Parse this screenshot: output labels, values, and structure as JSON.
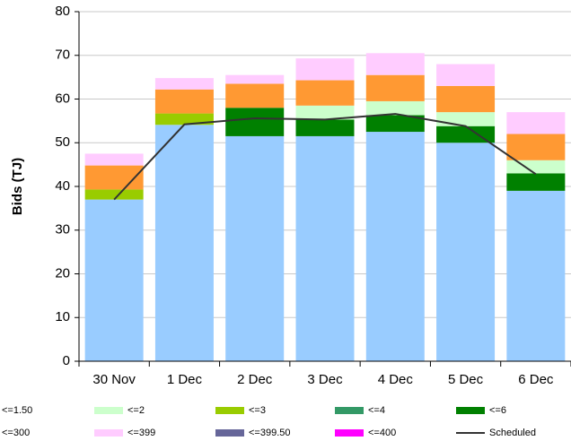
{
  "chart_data": {
    "type": "bar",
    "y_label": "Bids (TJ)",
    "categories": [
      "30 Nov",
      "1 Dec",
      "2 Dec",
      "3 Dec",
      "4 Dec",
      "5 Dec",
      "6 Dec"
    ],
    "ylim": [
      0,
      80
    ],
    "yticks": [
      0,
      10,
      20,
      30,
      40,
      50,
      60,
      70,
      80
    ],
    "grid": true,
    "series": [
      {
        "name": "<=1.50",
        "color": "#99ccff",
        "values": [
          37,
          54.1,
          51.5,
          51.5,
          52.5,
          50,
          39
        ]
      },
      {
        "name": "<=2",
        "color": "#ccffcc",
        "values": [
          0,
          0,
          0,
          3.2,
          3.2,
          3.2,
          3
        ]
      },
      {
        "name": "<=3",
        "color": "#99cc00",
        "values": [
          2.3,
          2.6,
          0,
          0,
          0,
          0,
          0
        ]
      },
      {
        "name": "<=4",
        "color": "#339966",
        "values": [
          0,
          0,
          0,
          0,
          0,
          0,
          0
        ]
      },
      {
        "name": "<=6",
        "color": "#008000",
        "values": [
          0,
          0,
          6.5,
          3.8,
          3.8,
          3.8,
          4
        ]
      },
      {
        "name": "<=300",
        "color": "#ff9933",
        "values": [
          5.5,
          5.5,
          5.5,
          5.8,
          6,
          6,
          6
        ]
      },
      {
        "name": "<=399",
        "color": "#ffccff",
        "values": [
          2.7,
          2.6,
          2,
          5,
          5,
          5,
          5
        ]
      },
      {
        "name": "<=399.50",
        "color": "#666699",
        "values": [
          0,
          0,
          0,
          0,
          0,
          0,
          0
        ]
      },
      {
        "name": "<=400",
        "color": "#ff00ff",
        "values": [
          0,
          0,
          0,
          0,
          0,
          0,
          0
        ]
      },
      {
        "name": "Scheduled",
        "color": "#333333",
        "type": "line",
        "values": [
          37,
          54.2,
          55.6,
          55.3,
          56.6,
          53.8,
          42.8
        ]
      }
    ]
  }
}
